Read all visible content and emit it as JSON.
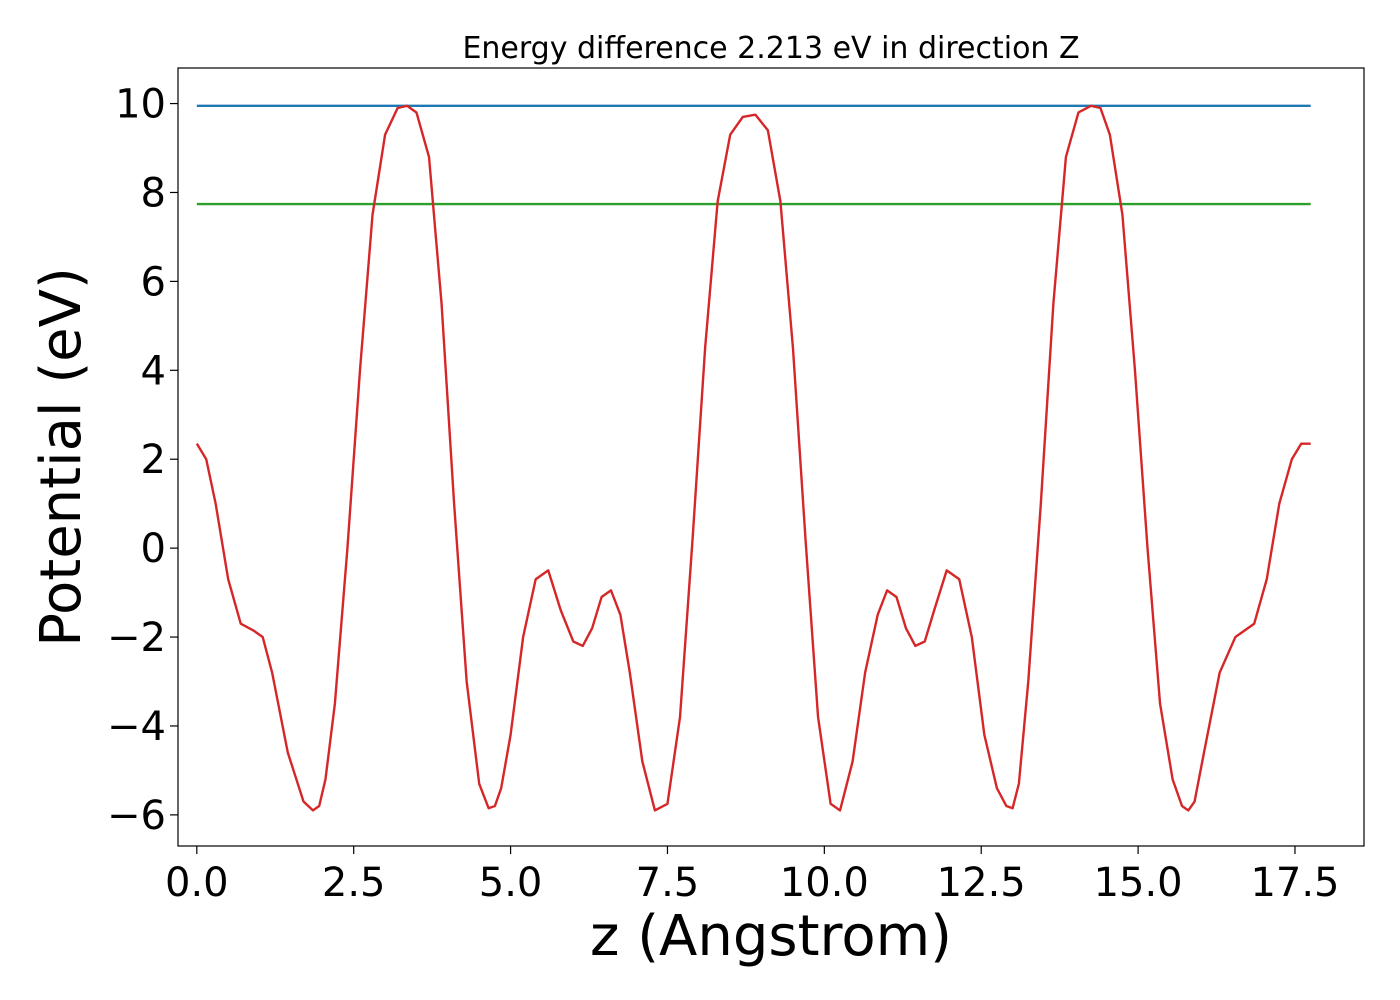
{
  "chart_data": {
    "type": "line",
    "title": "Energy difference 2.213 eV in direction Z",
    "xlabel": "z (Angstrom)",
    "ylabel": "Potential (eV)",
    "xlim": [
      -0.3,
      18.6
    ],
    "ylim": [
      -6.7,
      10.8
    ],
    "xticks": [
      0.0,
      2.5,
      5.0,
      7.5,
      10.0,
      12.5,
      15.0,
      17.5
    ],
    "xtick_labels": [
      "0.0",
      "2.5",
      "5.0",
      "7.5",
      "10.0",
      "12.5",
      "15.0",
      "17.5"
    ],
    "yticks": [
      -6,
      -4,
      -2,
      0,
      2,
      4,
      6,
      8,
      10
    ],
    "ytick_labels": [
      "−6",
      "−4",
      "−2",
      "0",
      "2",
      "4",
      "6",
      "8",
      "10"
    ],
    "grid": false,
    "series": [
      {
        "color": "#1f77b4",
        "x": [
          0.0,
          17.75
        ],
        "y": [
          9.95,
          9.95
        ]
      },
      {
        "color": "#2ca02c",
        "x": [
          0.0,
          17.75
        ],
        "y": [
          7.74,
          7.74
        ]
      },
      {
        "color": "#d62728",
        "x": [
          0.0,
          0.15,
          0.3,
          0.5,
          0.7,
          0.9,
          1.05,
          1.2,
          1.45,
          1.7,
          1.85,
          1.95,
          2.05,
          2.2,
          2.4,
          2.6,
          2.8,
          3.0,
          3.2,
          3.35,
          3.5,
          3.7,
          3.9,
          4.1,
          4.3,
          4.5,
          4.65,
          4.75,
          4.85,
          5.0,
          5.2,
          5.4,
          5.6,
          5.8,
          6.0,
          6.15,
          6.3,
          6.45,
          6.6,
          6.75,
          6.9,
          7.1,
          7.3,
          7.5,
          7.7,
          7.9,
          8.1,
          8.3,
          8.5,
          8.7,
          8.9,
          9.1,
          9.3,
          9.5,
          9.7,
          9.9,
          10.1,
          10.25,
          10.45,
          10.65,
          10.85,
          11.0,
          11.15,
          11.3,
          11.45,
          11.6,
          11.75,
          11.95,
          12.15,
          12.35,
          12.55,
          12.75,
          12.9,
          13.0,
          13.1,
          13.25,
          13.45,
          13.65,
          13.85,
          14.05,
          14.25,
          14.4,
          14.55,
          14.75,
          14.95,
          15.15,
          15.35,
          15.55,
          15.7,
          15.8,
          15.9,
          16.05,
          16.3,
          16.55,
          16.7,
          16.85,
          17.05,
          17.25,
          17.45,
          17.6,
          17.75
        ],
        "y": [
          2.35,
          2.0,
          1.0,
          -0.7,
          -1.7,
          -1.85,
          -2.0,
          -2.8,
          -4.6,
          -5.7,
          -5.9,
          -5.8,
          -5.2,
          -3.5,
          0.0,
          4.0,
          7.5,
          9.3,
          9.9,
          9.95,
          9.8,
          8.8,
          5.5,
          1.0,
          -3.0,
          -5.3,
          -5.85,
          -5.8,
          -5.4,
          -4.2,
          -2.0,
          -0.7,
          -0.5,
          -1.4,
          -2.1,
          -2.2,
          -1.8,
          -1.1,
          -0.95,
          -1.5,
          -2.8,
          -4.8,
          -5.9,
          -5.75,
          -3.8,
          0.2,
          4.5,
          7.8,
          9.3,
          9.7,
          9.75,
          9.4,
          7.8,
          4.5,
          0.2,
          -3.8,
          -5.75,
          -5.9,
          -4.8,
          -2.8,
          -1.5,
          -0.95,
          -1.1,
          -1.8,
          -2.2,
          -2.1,
          -1.4,
          -0.5,
          -0.7,
          -2.0,
          -4.2,
          -5.4,
          -5.8,
          -5.85,
          -5.3,
          -3.0,
          1.0,
          5.5,
          8.8,
          9.8,
          9.95,
          9.9,
          9.3,
          7.5,
          4.0,
          0.0,
          -3.5,
          -5.2,
          -5.8,
          -5.9,
          -5.7,
          -4.6,
          -2.8,
          -2.0,
          -1.85,
          -1.7,
          -0.7,
          1.0,
          2.0,
          2.35,
          2.35
        ]
      }
    ]
  }
}
